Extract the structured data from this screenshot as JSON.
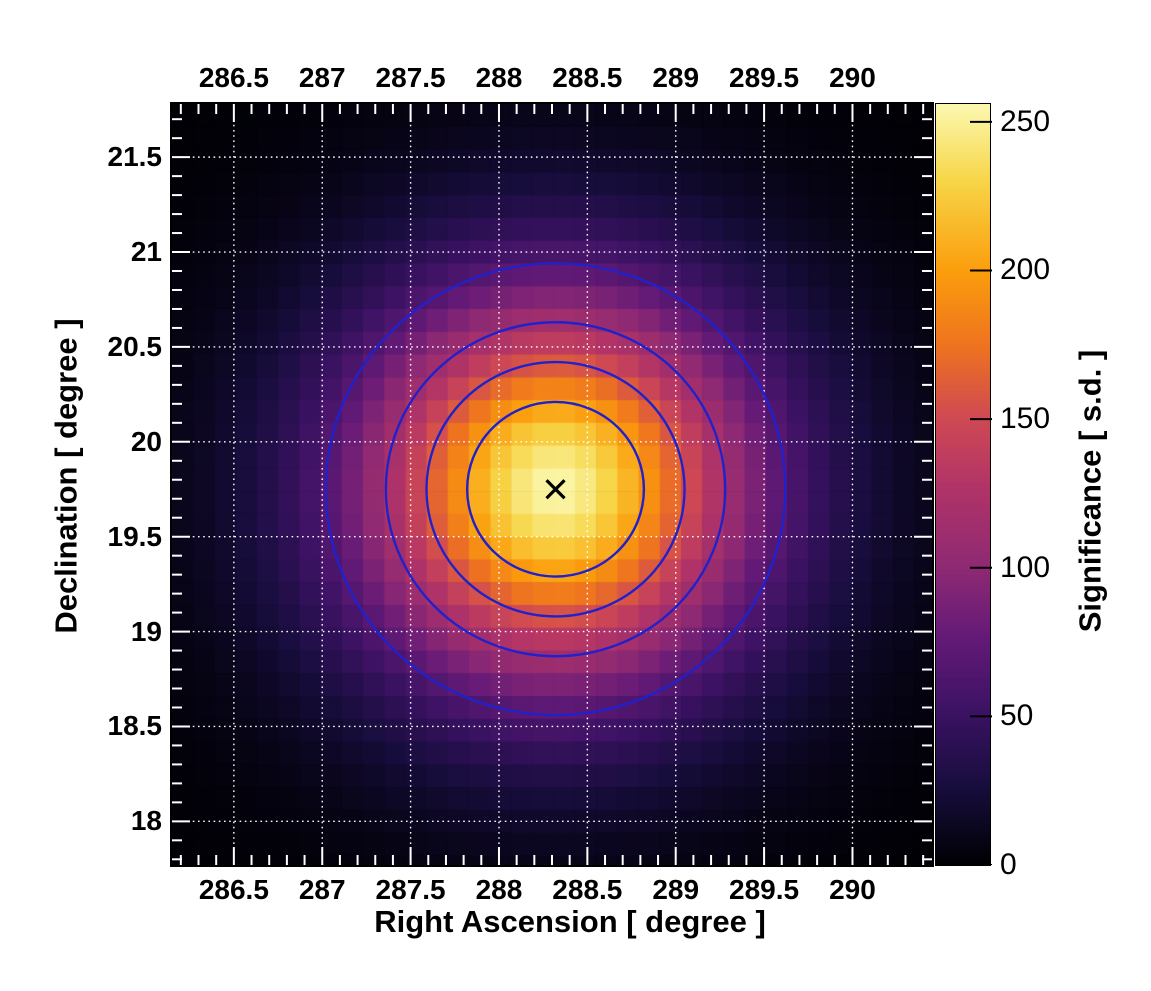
{
  "figure": {
    "background_color": "#ffffff",
    "frame_border_color": "#000000"
  },
  "chart_data": {
    "type": "heatmap",
    "title": "",
    "xlabel": "Right Ascension [ degree ]",
    "ylabel": "Declination [ degree ]",
    "zlabel": "Significance [ s.d. ]",
    "x_range": [
      286.15,
      290.45
    ],
    "y_range": [
      17.77,
      21.78
    ],
    "z_range": [
      0,
      256
    ],
    "x_major_ticks": [
      286.5,
      287,
      287.5,
      288,
      288.5,
      289,
      289.5,
      290
    ],
    "x_tick_labels": [
      "286.5",
      "287",
      "287.5",
      "288",
      "288.5",
      "289",
      "289.5",
      "290"
    ],
    "y_major_ticks": [
      18,
      18.5,
      19,
      19.5,
      20,
      20.5,
      21,
      21.5
    ],
    "y_tick_labels": [
      "18",
      "18.5",
      "19",
      "19.5",
      "20",
      "20.5",
      "21",
      "21.5"
    ],
    "z_ticks": [
      0,
      50,
      100,
      150,
      200,
      250
    ],
    "z_tick_labels": [
      "0",
      "50",
      "100",
      "150",
      "200",
      "250"
    ],
    "minor_tick_step": 0.1,
    "bin_size_deg": 0.12,
    "grid": {
      "show": true,
      "color": "#ffffff",
      "style": "dotted"
    },
    "tick_color": "#ffffff",
    "peak": {
      "ra": 288.32,
      "dec": 19.75,
      "significance": 255
    },
    "profile": {
      "shape": "exp(-(r/a)^p)",
      "a_deg": 1.1,
      "p": 1.75,
      "axis_ratio_y_over_x": 0.917
    },
    "marker": {
      "symbol": "x",
      "ra": 288.32,
      "dec": 19.75,
      "color": "#000000"
    },
    "contours": {
      "levels_sd": [
        200,
        150,
        100,
        50
      ],
      "radii_x_deg": [
        0.5,
        0.73,
        0.96,
        1.3
      ],
      "radii_y_deg": [
        0.46,
        0.67,
        0.88,
        1.19
      ],
      "color": "#2121cc"
    },
    "colormap": [
      {
        "t": 0.0,
        "color": "#000004"
      },
      {
        "t": 0.1,
        "color": "#170d3c"
      },
      {
        "t": 0.2,
        "color": "#3b1263"
      },
      {
        "t": 0.3,
        "color": "#641a77"
      },
      {
        "t": 0.39,
        "color": "#8e2973"
      },
      {
        "t": 0.5,
        "color": "#b23467"
      },
      {
        "t": 0.59,
        "color": "#d04a52"
      },
      {
        "t": 0.68,
        "color": "#ee7220"
      },
      {
        "t": 0.78,
        "color": "#fb9d0c"
      },
      {
        "t": 0.9,
        "color": "#f7d648"
      },
      {
        "t": 1.0,
        "color": "#fbf8b0"
      }
    ]
  }
}
